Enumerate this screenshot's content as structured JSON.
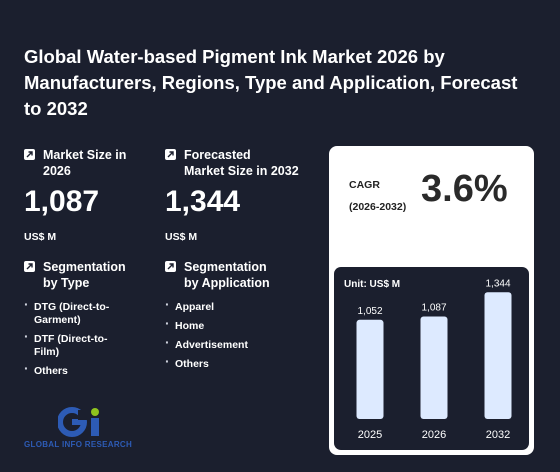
{
  "title": "Global Water-based Pigment Ink Market 2026 by Manufacturers, Regions, Type and Application, Forecast to 2032",
  "stats": {
    "current": {
      "label": "Market Size in\n2026",
      "value": "1,087",
      "unit": "US$ M"
    },
    "forecast": {
      "label": "Forecasted\nMarket Size in 2032",
      "value": "1,344",
      "unit": "US$ M"
    }
  },
  "segmentation": {
    "type": {
      "label": "Segmentation\nby Type",
      "items": [
        "DTG  (Direct-to-\nGarment)",
        "DTF  (Direct-to-\nFilm)",
        "Others"
      ]
    },
    "application": {
      "label": "Segmentation\nby Application",
      "items": [
        "Apparel",
        "Home",
        "Advertisement",
        "Others"
      ]
    }
  },
  "cagr": {
    "label": "CAGR\n(2026-2032)",
    "value": "3.6%"
  },
  "logo": {
    "text": "GLOBAL INFO RESEARCH"
  },
  "colors": {
    "background": "#1b1f2e",
    "bar": "#ddeaff",
    "logo_blue": "#2d5bb5",
    "logo_green": "#8fc31f"
  },
  "chart_data": {
    "type": "bar",
    "unit_label": "Unit: US$ M",
    "categories": [
      "2025",
      "2026",
      "2032"
    ],
    "values": [
      1052,
      1087,
      1344
    ],
    "data_labels": [
      "1,052",
      "1,087",
      "1,344"
    ],
    "ylim": [
      0,
      1400
    ]
  }
}
